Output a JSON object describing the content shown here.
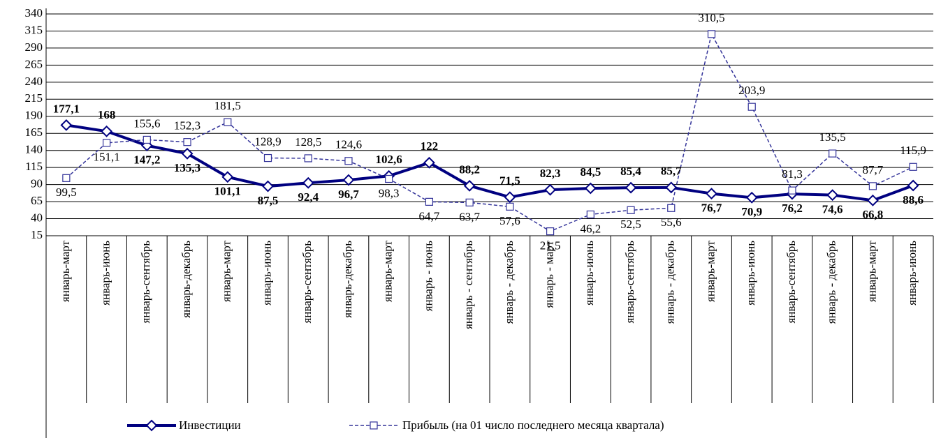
{
  "chart_data": {
    "type": "line",
    "categories": [
      "январь-март",
      "январь-июнь",
      "январь-сентябрь",
      "январь-декабрь",
      "январь-март",
      "январь-июнь",
      "январь-сентябрь",
      "январь-декабрь",
      "январь-март",
      "январь - июнь",
      "январь - сентябрь",
      "январь - декабрь",
      "январь - март",
      "январь-июнь",
      "январь-сентябрь",
      "январь - декабрь",
      "январь-март",
      "январь-июнь",
      "январь-сентябрь",
      "январь - декабрь",
      "январь-март",
      "январь-июнь"
    ],
    "series": [
      {
        "name": "Инвестиции",
        "color": "#000080",
        "values": [
          177.1,
          168,
          147.2,
          135.3,
          101.1,
          87.5,
          92.4,
          96.7,
          102.6,
          122,
          88.2,
          71.5,
          82.3,
          84.5,
          85.4,
          85.7,
          76.7,
          70.9,
          76.2,
          74.6,
          66.8,
          88.6
        ],
        "value_labels": [
          "177,1",
          "168",
          "147,2",
          "135,3",
          "101,1",
          "87,5",
          "92,4",
          "96,7",
          "102,6",
          "122",
          "88,2",
          "71,5",
          "82,3",
          "84,5",
          "85,4",
          "85,7",
          "76,7",
          "70,9",
          "76,2",
          "74,6",
          "66,8",
          "88,6"
        ]
      },
      {
        "name": "Прибыль (на 01 число последнего месяца квартала)",
        "color": "#333399",
        "values": [
          99.5,
          151.1,
          155.6,
          152.3,
          181.5,
          128.9,
          128.5,
          124.6,
          98.3,
          64.7,
          63.7,
          57.6,
          21.5,
          46.2,
          52.5,
          55.6,
          310.5,
          203.9,
          81.3,
          135.5,
          87.7,
          115.9
        ],
        "value_labels": [
          "99,5",
          "151,1",
          "155,6",
          "152,3",
          "181,5",
          "128,9",
          "128,5",
          "124,6",
          "98,3",
          "64,7",
          "63,7",
          "57,6",
          "21,5",
          "46,2",
          "52,5",
          "55,6",
          "310,5",
          "203,9",
          "81,3",
          "135,5",
          "87,7",
          "115,9"
        ]
      }
    ],
    "ylim": [
      15,
      340
    ],
    "yticks": [
      15,
      40,
      65,
      90,
      115,
      140,
      165,
      190,
      215,
      240,
      265,
      290,
      315,
      340
    ],
    "grid": true
  }
}
